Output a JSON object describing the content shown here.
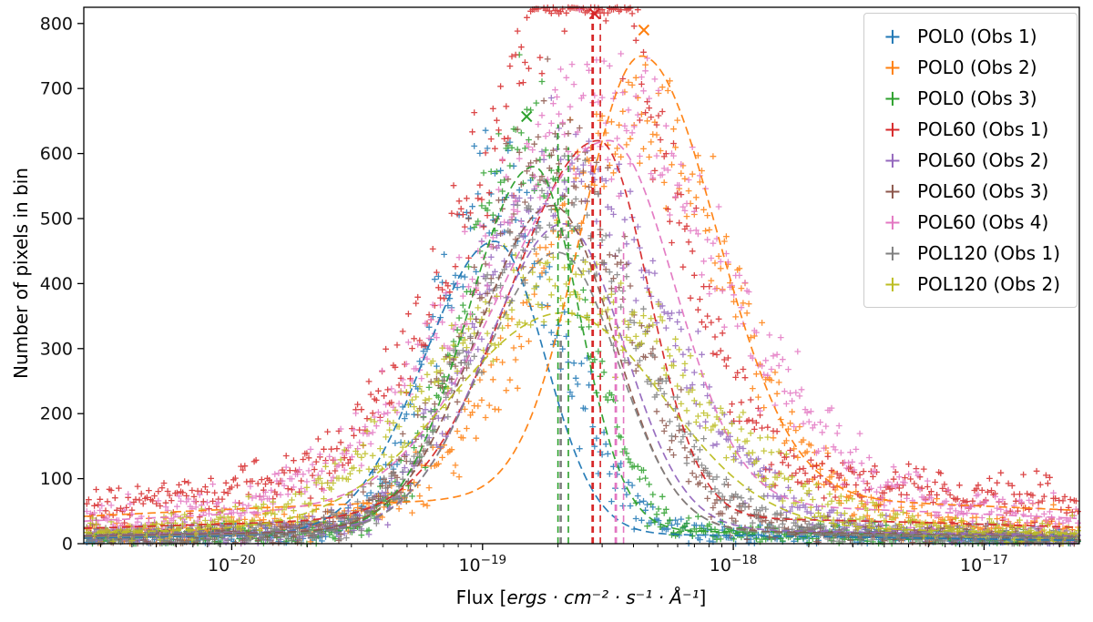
{
  "figure": {
    "background": "#ffffff",
    "xlabel_prefix": "Flux [",
    "xlabel_units": "ergs · cm⁻² · s⁻¹ · Å⁻¹",
    "xlabel_suffix": "]"
  },
  "chart_data": {
    "type": "scatter",
    "title": "",
    "xlabel": "Flux [ergs · cm⁻² · s⁻¹ · Å⁻¹]",
    "ylabel": "Number of pixels in bin",
    "x_scale": "log",
    "xlim_log10": [
      -20.59,
      -16.62
    ],
    "ylim": [
      0,
      825
    ],
    "y_ticks": [
      0,
      100,
      200,
      300,
      400,
      500,
      600,
      700,
      800
    ],
    "x_ticks": [
      {
        "log": -20,
        "base": "10",
        "exp": "−20"
      },
      {
        "log": -19,
        "base": "10",
        "exp": "−19"
      },
      {
        "log": -18,
        "base": "10",
        "exp": "−18"
      },
      {
        "log": -17,
        "base": "10",
        "exp": "−17"
      }
    ],
    "grid": false,
    "legend_position": "upper right",
    "marker": "+",
    "series": [
      {
        "label": "POL0 (Obs 1)",
        "color": "#1f77b4",
        "seed": 11,
        "peak_flux": 1.1e-19,
        "peak_count": 520,
        "sigma_left_dex": 0.22,
        "sigma_right_dex": 0.26,
        "broad_amp": 14,
        "broad_sigma_dex": 1.3,
        "base": 3,
        "fit": {
          "amp": 450,
          "mu_flux": 1.12e-19,
          "sigma_left_dex": 0.28,
          "sigma_right_dex": 0.2,
          "broad_amp": 15,
          "broad_sigma_dex": 1.6
        }
      },
      {
        "label": "POL0 (Obs 2)",
        "color": "#ff7f0e",
        "seed": 22,
        "peak_flux": 4.3e-19,
        "peak_count": 620,
        "sigma_left_dex": 0.4,
        "sigma_right_dex": 0.34,
        "broad_amp": 40,
        "broad_sigma_dex": 1.5,
        "base": 3,
        "fit": {
          "amp": 680,
          "mu_flux": 4.3e-19,
          "sigma_left_dex": 0.24,
          "sigma_right_dex": 0.3,
          "broad_amp": 70,
          "broad_sigma_dex": 2.2
        }
      },
      {
        "label": "POL0 (Obs 3)",
        "color": "#2ca02c",
        "seed": 33,
        "peak_flux": 1.5e-19,
        "peak_count": 620,
        "sigma_left_dex": 0.24,
        "sigma_right_dex": 0.22,
        "broad_amp": 14,
        "broad_sigma_dex": 1.3,
        "base": 3,
        "fit": {
          "amp": 560,
          "mu_flux": 1.6e-19,
          "sigma_left_dex": 0.26,
          "sigma_right_dex": 0.18,
          "broad_amp": 20,
          "broad_sigma_dex": 1.8
        }
      },
      {
        "label": "POL60 (Obs 1)",
        "color": "#d62728",
        "seed": 44,
        "peak_flux": 2.7e-19,
        "peak_count": 780,
        "sigma_left_dex": 0.42,
        "sigma_right_dex": 0.3,
        "broad_amp": 115,
        "broad_sigma_dex": 1.6,
        "base": 4,
        "fit": {
          "amp": 580,
          "mu_flux": 2.9e-19,
          "sigma_left_dex": 0.35,
          "sigma_right_dex": 0.2,
          "broad_amp": 40,
          "broad_sigma_dex": 2.0
        }
      },
      {
        "label": "POL60 (Obs 2)",
        "color": "#9467bd",
        "seed": 55,
        "peak_flux": 2.1e-19,
        "peak_count": 560,
        "sigma_left_dex": 0.32,
        "sigma_right_dex": 0.4,
        "broad_amp": 20,
        "broad_sigma_dex": 1.4,
        "base": 3,
        "fit": {
          "amp": 470,
          "mu_flux": 2.1e-19,
          "sigma_left_dex": 0.3,
          "sigma_right_dex": 0.24,
          "broad_amp": 22,
          "broad_sigma_dex": 1.8
        }
      },
      {
        "label": "POL60 (Obs 3)",
        "color": "#8c564b",
        "seed": 66,
        "peak_flux": 1.9e-19,
        "peak_count": 575,
        "sigma_left_dex": 0.32,
        "sigma_right_dex": 0.3,
        "broad_amp": 20,
        "broad_sigma_dex": 1.4,
        "base": 3,
        "fit": {
          "amp": 500,
          "mu_flux": 1.9e-19,
          "sigma_left_dex": 0.3,
          "sigma_right_dex": 0.24,
          "broad_amp": 20,
          "broad_sigma_dex": 1.8
        }
      },
      {
        "label": "POL60 (Obs 4)",
        "color": "#e377c2",
        "seed": 77,
        "peak_flux": 3.2e-19,
        "peak_count": 600,
        "sigma_left_dex": 0.52,
        "sigma_right_dex": 0.45,
        "broad_amp": 70,
        "broad_sigma_dex": 1.6,
        "base": 4,
        "fit": {
          "amp": 560,
          "mu_flux": 3.2e-19,
          "sigma_left_dex": 0.42,
          "sigma_right_dex": 0.26,
          "broad_amp": 60,
          "broad_sigma_dex": 2.0
        }
      },
      {
        "label": "POL120 (Obs 1)",
        "color": "#7f7f7f",
        "seed": 88,
        "peak_flux": 2e-19,
        "peak_count": 490,
        "sigma_left_dex": 0.34,
        "sigma_right_dex": 0.33,
        "broad_amp": 16,
        "broad_sigma_dex": 1.4,
        "base": 3,
        "fit": {
          "amp": 430,
          "mu_flux": 2e-19,
          "sigma_left_dex": 0.3,
          "sigma_right_dex": 0.24,
          "broad_amp": 18,
          "broad_sigma_dex": 1.8
        }
      },
      {
        "label": "POL120 (Obs 2)",
        "color": "#bcbd22",
        "seed": 99,
        "peak_flux": 2.1e-19,
        "peak_count": 360,
        "sigma_left_dex": 0.5,
        "sigma_right_dex": 0.48,
        "broad_amp": 28,
        "broad_sigma_dex": 1.5,
        "base": 5,
        "fit": {
          "amp": 330,
          "mu_flux": 2.1e-19,
          "sigma_left_dex": 0.45,
          "sigma_right_dex": 0.4,
          "broad_amp": 25,
          "broad_sigma_dex": 2.2
        }
      }
    ],
    "vlines": [
      {
        "color": "#2ca02c",
        "flux": 2e-19,
        "ymax": 645,
        "width": 1.6
      },
      {
        "color": "#2ca02c",
        "flux": 2.2e-19,
        "ymax": 610,
        "width": 1.6
      },
      {
        "color": "#7f7f7f",
        "flux": 2.05e-19,
        "ymax": 320,
        "width": 2.6
      },
      {
        "color": "#d62728",
        "flux": 2.75e-19,
        "ymax": 825,
        "width": 2.8
      },
      {
        "color": "#d62728",
        "flux": 2.95e-19,
        "ymax": 812,
        "width": 1.6
      },
      {
        "color": "#e377c2",
        "flux": 3.4e-19,
        "ymax": 398,
        "width": 2.8
      },
      {
        "color": "#e377c2",
        "flux": 3.65e-19,
        "ymax": 480,
        "width": 1.6
      }
    ],
    "peak_markers": [
      {
        "color": "#2ca02c",
        "flux": 1.5e-19,
        "count": 657
      },
      {
        "color": "#d62728",
        "flux": 2.8e-19,
        "count": 815
      },
      {
        "color": "#ff7f0e",
        "flux": 4.4e-19,
        "count": 790
      }
    ]
  }
}
